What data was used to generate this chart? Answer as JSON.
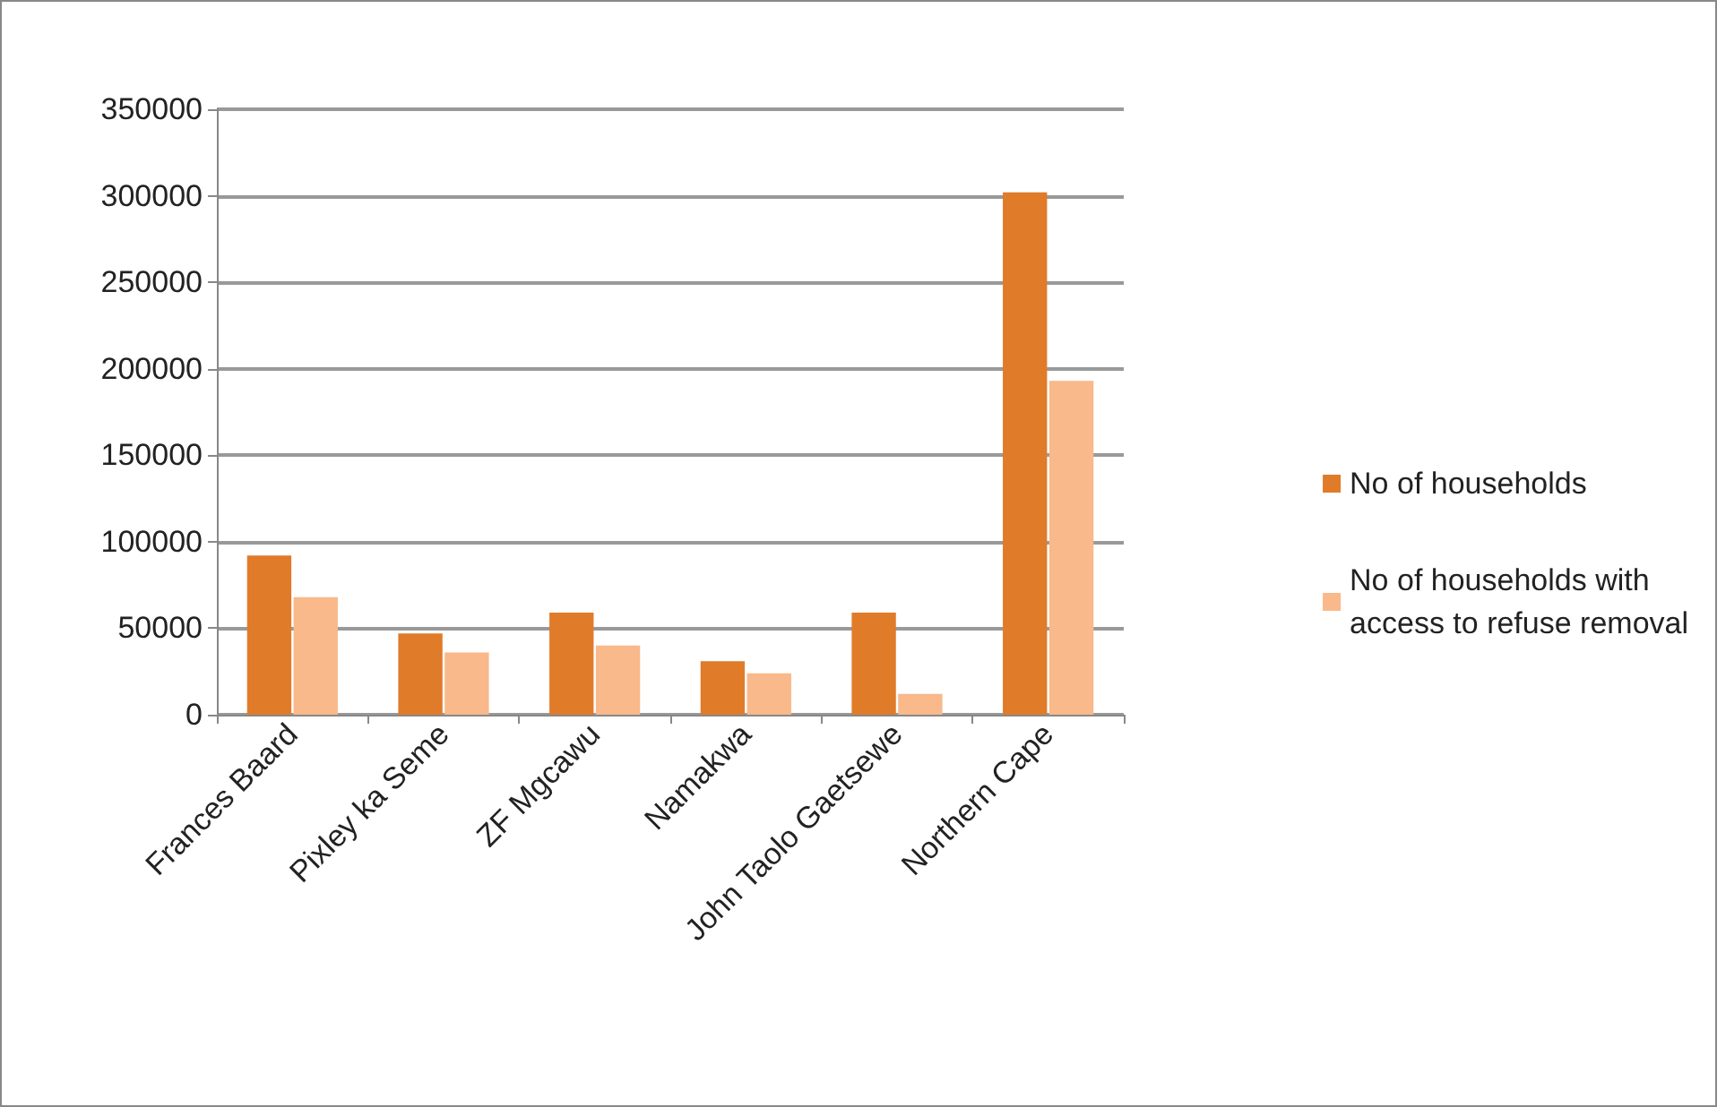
{
  "chart_data": {
    "type": "bar",
    "categories": [
      "Frances Baard",
      "Pixley ka Seme",
      "ZF Mgcawu",
      "Namakwa",
      "John Taolo Gaetsewe",
      "Northern Cape"
    ],
    "series": [
      {
        "name": "No of households",
        "color": "#e07b2a",
        "values": [
          92000,
          47000,
          59000,
          31000,
          59000,
          302000
        ]
      },
      {
        "name": "No of households with access to refuse removal",
        "color": "#f9b98a",
        "values": [
          68000,
          36000,
          40000,
          24000,
          12000,
          193000
        ]
      }
    ],
    "ylim": [
      0,
      350000
    ],
    "yticks": [
      0,
      50000,
      100000,
      150000,
      200000,
      250000,
      300000,
      350000
    ],
    "grid": "y",
    "legend": "right"
  }
}
